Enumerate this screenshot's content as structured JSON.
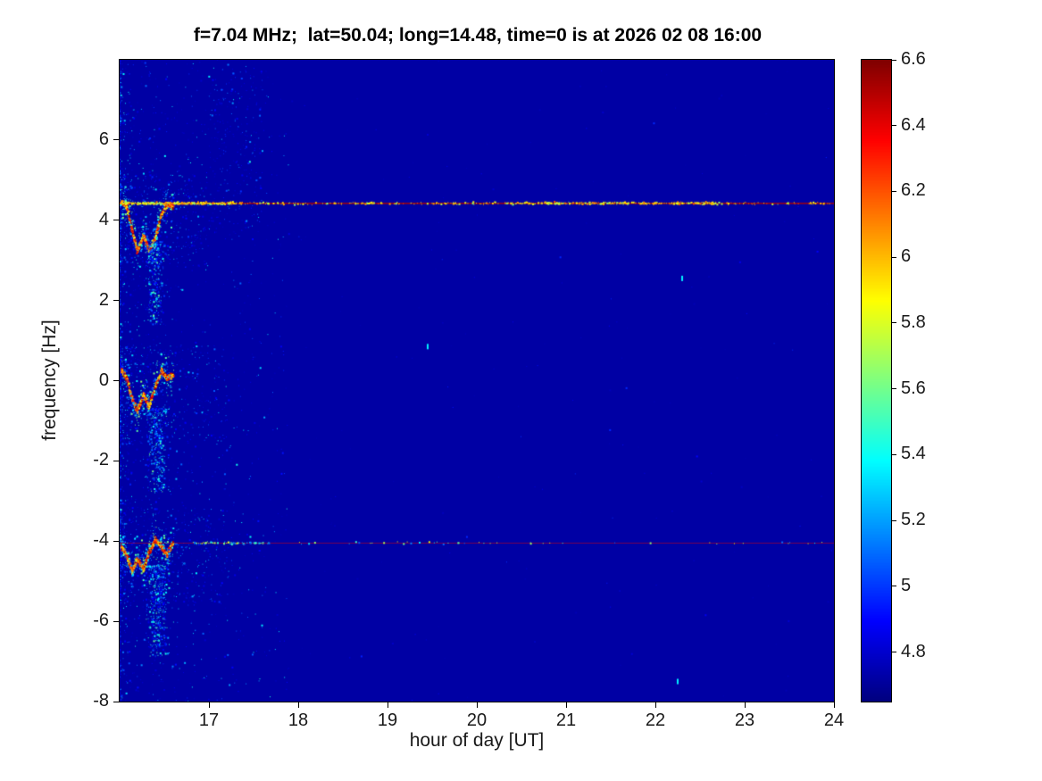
{
  "chart_data": {
    "type": "heatmap",
    "title": "f=7.04 MHz;  lat=50.04; long=14.48, time=0 is at 2026 02 08 16:00",
    "xlabel": "hour of day [UT]",
    "ylabel": "frequency [Hz]",
    "xlim": [
      16,
      24
    ],
    "ylim": [
      -8,
      8
    ],
    "xticks": [
      17,
      18,
      19,
      20,
      21,
      22,
      23,
      24
    ],
    "yticks": [
      6,
      4,
      2,
      0,
      -2,
      -4,
      -6,
      -8
    ],
    "colormap": "jet",
    "background_value": 4.72,
    "colorbar": {
      "min": 4.65,
      "max": 6.6,
      "ticks": [
        6.6,
        6.4,
        6.2,
        6,
        5.8,
        5.6,
        5.4,
        5.2,
        5,
        4.8
      ]
    },
    "features": [
      {
        "type": "noise",
        "x": [
          16.0,
          17.9
        ],
        "y": [
          -8,
          8
        ],
        "count": 1600,
        "v": [
          4.78,
          5.45
        ],
        "x_decay": 2.5
      },
      {
        "type": "noise",
        "x": [
          16.0,
          24.0
        ],
        "y": [
          -8,
          8
        ],
        "count": 260,
        "v": [
          4.75,
          5.0
        ],
        "x_decay": 0
      },
      {
        "type": "noise",
        "x": [
          16.0,
          17.0
        ],
        "y": [
          2.8,
          5.2
        ],
        "count": 420,
        "v": [
          4.8,
          5.35
        ],
        "x_decay": 1.8
      },
      {
        "type": "noise",
        "x": [
          16.0,
          17.2
        ],
        "y": [
          -1.6,
          0.9
        ],
        "count": 420,
        "v": [
          4.8,
          5.35
        ],
        "x_decay": 1.8
      },
      {
        "type": "noise",
        "x": [
          16.0,
          17.2
        ],
        "y": [
          -5.6,
          -3.2
        ],
        "count": 420,
        "v": [
          4.8,
          5.35
        ],
        "x_decay": 1.8
      },
      {
        "type": "noise",
        "x": [
          17.0,
          17.6
        ],
        "y": [
          3.5,
          7.8
        ],
        "count": 220,
        "v": [
          4.8,
          5.2
        ],
        "x_decay": 0
      },
      {
        "type": "trace",
        "halo": 0.35,
        "path": [
          [
            16.02,
            4.45
          ],
          [
            16.08,
            4.35
          ],
          [
            16.14,
            3.75
          ],
          [
            16.2,
            3.25
          ],
          [
            16.27,
            3.6
          ],
          [
            16.33,
            3.25
          ],
          [
            16.4,
            3.55
          ],
          [
            16.47,
            4.15
          ],
          [
            16.53,
            4.4
          ],
          [
            16.6,
            4.35
          ]
        ]
      },
      {
        "type": "plume",
        "x": [
          16.25,
          16.55
        ],
        "top": 3.4,
        "bottom": 1.4,
        "count": 360,
        "v": [
          4.85,
          5.6
        ]
      },
      {
        "type": "trace",
        "halo": 0.35,
        "path": [
          [
            16.02,
            0.25
          ],
          [
            16.08,
            0.05
          ],
          [
            16.14,
            -0.45
          ],
          [
            16.2,
            -0.75
          ],
          [
            16.27,
            -0.35
          ],
          [
            16.33,
            -0.65
          ],
          [
            16.4,
            -0.15
          ],
          [
            16.47,
            0.25
          ],
          [
            16.53,
            0.05
          ],
          [
            16.6,
            0.15
          ]
        ]
      },
      {
        "type": "plume",
        "x": [
          16.25,
          16.6
        ],
        "top": -0.7,
        "bottom": -2.8,
        "count": 420,
        "v": [
          4.85,
          5.6
        ]
      },
      {
        "type": "trace",
        "halo": 0.35,
        "path": [
          [
            16.02,
            -4.15
          ],
          [
            16.08,
            -4.35
          ],
          [
            16.14,
            -4.75
          ],
          [
            16.2,
            -4.45
          ],
          [
            16.27,
            -4.7
          ],
          [
            16.33,
            -4.3
          ],
          [
            16.4,
            -3.95
          ],
          [
            16.47,
            -4.15
          ],
          [
            16.53,
            -4.35
          ],
          [
            16.6,
            -4.05
          ]
        ]
      },
      {
        "type": "plume",
        "x": [
          16.25,
          16.6
        ],
        "top": -4.6,
        "bottom": -6.9,
        "count": 460,
        "v": [
          4.85,
          5.6
        ]
      },
      {
        "type": "hline",
        "f": 4.42,
        "v": 6.5,
        "thickness": 1.5,
        "alpha": 0.9,
        "speckles": 900,
        "speckle_v": [
          5.6,
          6.2
        ],
        "bright": [
          [
            20.3,
            22.7
          ],
          [
            16.0,
            17.3
          ]
        ]
      },
      {
        "type": "hline",
        "f": -4.05,
        "v": 6.4,
        "thickness": 1,
        "alpha": 0.5,
        "speckles": 130,
        "speckle_v": [
          5.0,
          5.9
        ],
        "bright": [
          [
            16.8,
            17.7
          ]
        ]
      },
      {
        "type": "spots",
        "v": 5.35,
        "points": [
          [
            19.45,
            0.85
          ],
          [
            22.3,
            2.55
          ],
          [
            22.25,
            -7.5
          ]
        ]
      }
    ]
  }
}
